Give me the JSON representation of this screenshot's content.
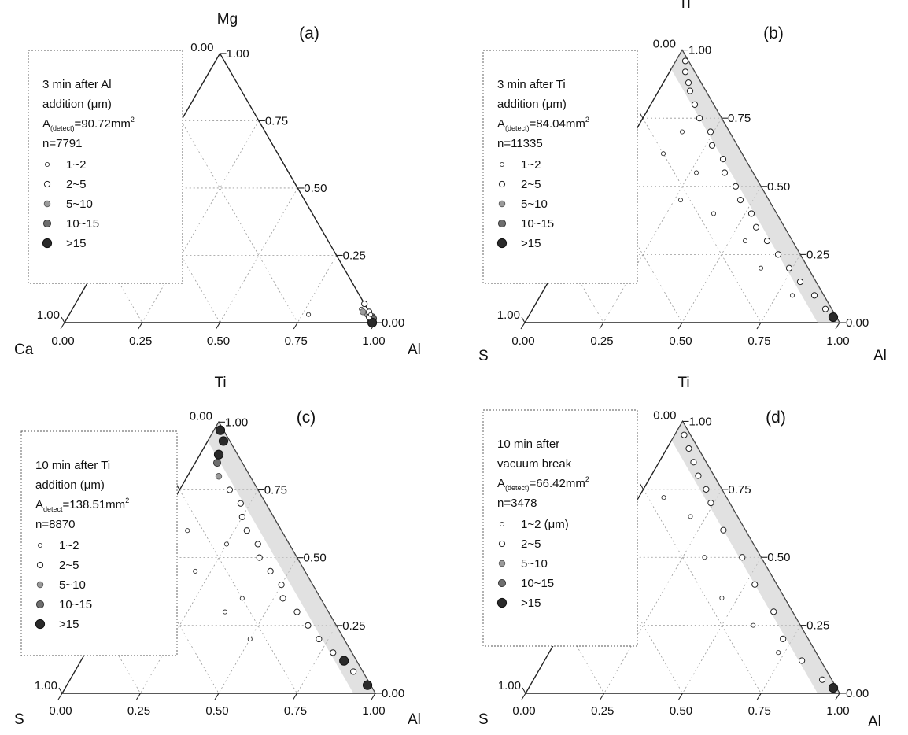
{
  "chart_data": [
    {
      "type": "scatter",
      "panel_label": "(a)",
      "vertices": {
        "top": "Mg",
        "left": "Ca",
        "right": "Al"
      },
      "tick_labels": [
        "0.00",
        "0.25",
        "0.50",
        "0.75",
        "1.00"
      ],
      "legend": {
        "title_lines": [
          "3 min after Al",
          "addition (μm)"
        ],
        "area_prefix": "A",
        "area_sub": "(detect)",
        "area_value": "=90.72mm",
        "area_sup": "2",
        "n_text": "n=7791",
        "size_classes": [
          "1~2",
          "2~5",
          "5~10",
          "10~15",
          ">15"
        ]
      },
      "note": "Ternary fractions listed as [Mg, Ca, Al]; sizes are legend class indices 0-4",
      "points": [
        [
          0.07,
          0.0,
          0.93,
          1
        ],
        [
          0.03,
          0.01,
          0.96,
          2
        ],
        [
          0.02,
          0.0,
          0.98,
          3
        ],
        [
          0.04,
          0.0,
          0.96,
          1
        ],
        [
          0.01,
          0.01,
          0.98,
          2
        ],
        [
          0.015,
          0.0,
          0.985,
          3
        ],
        [
          0.0,
          0.01,
          0.99,
          4
        ],
        [
          0.02,
          0.01,
          0.97,
          1
        ],
        [
          0.03,
          0.0,
          0.97,
          0
        ],
        [
          0.05,
          0.02,
          0.93,
          0
        ],
        [
          0.03,
          0.2,
          0.77,
          0
        ],
        [
          0.04,
          0.02,
          0.94,
          2
        ]
      ]
    },
    {
      "type": "scatter",
      "panel_label": "(b)",
      "vertices": {
        "top": "Ti",
        "left": "S",
        "right": "Al"
      },
      "tick_labels": [
        "0.00",
        "0.25",
        "0.50",
        "0.75",
        "1.00"
      ],
      "legend": {
        "title_lines": [
          "3 min after Ti",
          "addition (μm)"
        ],
        "area_prefix": "A",
        "area_sub": "(detect)",
        "area_value": "=84.04mm",
        "area_sup": "2",
        "n_text": "n=11335",
        "size_classes": [
          "1~2",
          "2~5",
          "5~10",
          "10~15",
          ">15"
        ]
      },
      "note": "Ternary fractions listed as [Ti, S, Al]; dense band along S=0 edge",
      "points": [
        [
          0.96,
          0.01,
          0.03,
          1
        ],
        [
          0.92,
          0.03,
          0.05,
          1
        ],
        [
          0.88,
          0.04,
          0.08,
          1
        ],
        [
          0.85,
          0.05,
          0.1,
          1
        ],
        [
          0.8,
          0.06,
          0.14,
          1
        ],
        [
          0.75,
          0.07,
          0.18,
          1
        ],
        [
          0.7,
          0.06,
          0.24,
          1
        ],
        [
          0.65,
          0.08,
          0.27,
          1
        ],
        [
          0.6,
          0.07,
          0.33,
          1
        ],
        [
          0.55,
          0.09,
          0.36,
          1
        ],
        [
          0.5,
          0.08,
          0.42,
          1
        ],
        [
          0.45,
          0.09,
          0.46,
          1
        ],
        [
          0.4,
          0.08,
          0.52,
          1
        ],
        [
          0.35,
          0.09,
          0.56,
          1
        ],
        [
          0.3,
          0.08,
          0.62,
          1
        ],
        [
          0.25,
          0.07,
          0.68,
          1
        ],
        [
          0.2,
          0.06,
          0.74,
          1
        ],
        [
          0.15,
          0.05,
          0.8,
          1
        ],
        [
          0.1,
          0.03,
          0.87,
          1
        ],
        [
          0.05,
          0.02,
          0.93,
          1
        ],
        [
          0.7,
          0.15,
          0.15,
          0
        ],
        [
          0.55,
          0.18,
          0.27,
          0
        ],
        [
          0.4,
          0.2,
          0.4,
          0
        ],
        [
          0.3,
          0.15,
          0.55,
          0
        ],
        [
          0.2,
          0.15,
          0.65,
          0
        ],
        [
          0.1,
          0.1,
          0.8,
          0
        ],
        [
          0.62,
          0.25,
          0.13,
          0
        ],
        [
          0.45,
          0.28,
          0.27,
          0
        ],
        [
          0.02,
          0.01,
          0.97,
          4
        ]
      ]
    },
    {
      "type": "scatter",
      "panel_label": "(c)",
      "vertices": {
        "top": "Ti",
        "left": "S",
        "right": "Al"
      },
      "tick_labels": [
        "0.00",
        "0.25",
        "0.50",
        "0.75",
        "1.00"
      ],
      "legend": {
        "title_lines": [
          "10 min after Ti",
          "addition (μm)"
        ],
        "area_prefix": "A",
        "area_sub": "detect",
        "area_value": "=138.51mm",
        "area_sup": "2",
        "n_text": "n=8870",
        "size_classes": [
          "1~2",
          "2~5",
          "5~10",
          "10~15",
          ">15"
        ]
      },
      "note": "Ternary fractions listed as [Ti, S, Al]; large particles clustered near Ti and Al apexes",
      "points": [
        [
          0.97,
          0.01,
          0.02,
          4
        ],
        [
          0.93,
          0.02,
          0.05,
          4
        ],
        [
          0.88,
          0.06,
          0.06,
          4
        ],
        [
          0.85,
          0.08,
          0.07,
          3
        ],
        [
          0.8,
          0.1,
          0.1,
          2
        ],
        [
          0.75,
          0.09,
          0.16,
          1
        ],
        [
          0.7,
          0.08,
          0.22,
          1
        ],
        [
          0.65,
          0.1,
          0.25,
          1
        ],
        [
          0.6,
          0.11,
          0.29,
          1
        ],
        [
          0.55,
          0.1,
          0.35,
          1
        ],
        [
          0.5,
          0.12,
          0.38,
          1
        ],
        [
          0.45,
          0.11,
          0.44,
          1
        ],
        [
          0.4,
          0.1,
          0.5,
          1
        ],
        [
          0.35,
          0.12,
          0.53,
          1
        ],
        [
          0.3,
          0.1,
          0.6,
          1
        ],
        [
          0.25,
          0.09,
          0.66,
          1
        ],
        [
          0.2,
          0.08,
          0.72,
          1
        ],
        [
          0.15,
          0.06,
          0.79,
          1
        ],
        [
          0.12,
          0.04,
          0.84,
          4
        ],
        [
          0.08,
          0.03,
          0.89,
          1
        ],
        [
          0.03,
          0.01,
          0.96,
          4
        ],
        [
          0.6,
          0.3,
          0.1,
          0
        ],
        [
          0.45,
          0.35,
          0.2,
          0
        ],
        [
          0.3,
          0.33,
          0.37,
          0
        ],
        [
          0.2,
          0.3,
          0.5,
          0
        ],
        [
          0.35,
          0.25,
          0.4,
          0
        ],
        [
          0.55,
          0.2,
          0.25,
          0
        ]
      ]
    },
    {
      "type": "scatter",
      "panel_label": "(d)",
      "vertices": {
        "top": "Ti",
        "left": "S",
        "right": "Al"
      },
      "tick_labels": [
        "0.00",
        "0.25",
        "0.50",
        "0.75",
        "1.00"
      ],
      "legend": {
        "title_lines": [
          "10 min after",
          "vacuum break"
        ],
        "area_prefix": "A",
        "area_sub": "(detect)",
        "area_value": "=66.42mm",
        "area_sup": "2",
        "n_text": "n=3478",
        "size_classes": [
          "1~2 (μm)",
          "2~5",
          "5~10",
          "10~15",
          ">15"
        ]
      },
      "note": "Ternary fractions listed as [Ti, S, Al]",
      "points": [
        [
          0.95,
          0.02,
          0.03,
          1
        ],
        [
          0.9,
          0.03,
          0.07,
          1
        ],
        [
          0.85,
          0.04,
          0.11,
          1
        ],
        [
          0.8,
          0.05,
          0.15,
          1
        ],
        [
          0.75,
          0.05,
          0.2,
          1
        ],
        [
          0.7,
          0.06,
          0.24,
          1
        ],
        [
          0.6,
          0.07,
          0.33,
          1
        ],
        [
          0.5,
          0.06,
          0.44,
          1
        ],
        [
          0.4,
          0.07,
          0.53,
          1
        ],
        [
          0.3,
          0.06,
          0.64,
          1
        ],
        [
          0.2,
          0.08,
          0.72,
          1
        ],
        [
          0.12,
          0.06,
          0.82,
          1
        ],
        [
          0.05,
          0.03,
          0.92,
          1
        ],
        [
          0.02,
          0.01,
          0.97,
          4
        ],
        [
          0.65,
          0.15,
          0.2,
          0
        ],
        [
          0.5,
          0.18,
          0.32,
          0
        ],
        [
          0.35,
          0.2,
          0.45,
          0
        ],
        [
          0.25,
          0.15,
          0.6,
          0
        ],
        [
          0.15,
          0.12,
          0.73,
          0
        ],
        [
          0.72,
          0.2,
          0.08,
          0
        ]
      ]
    }
  ]
}
